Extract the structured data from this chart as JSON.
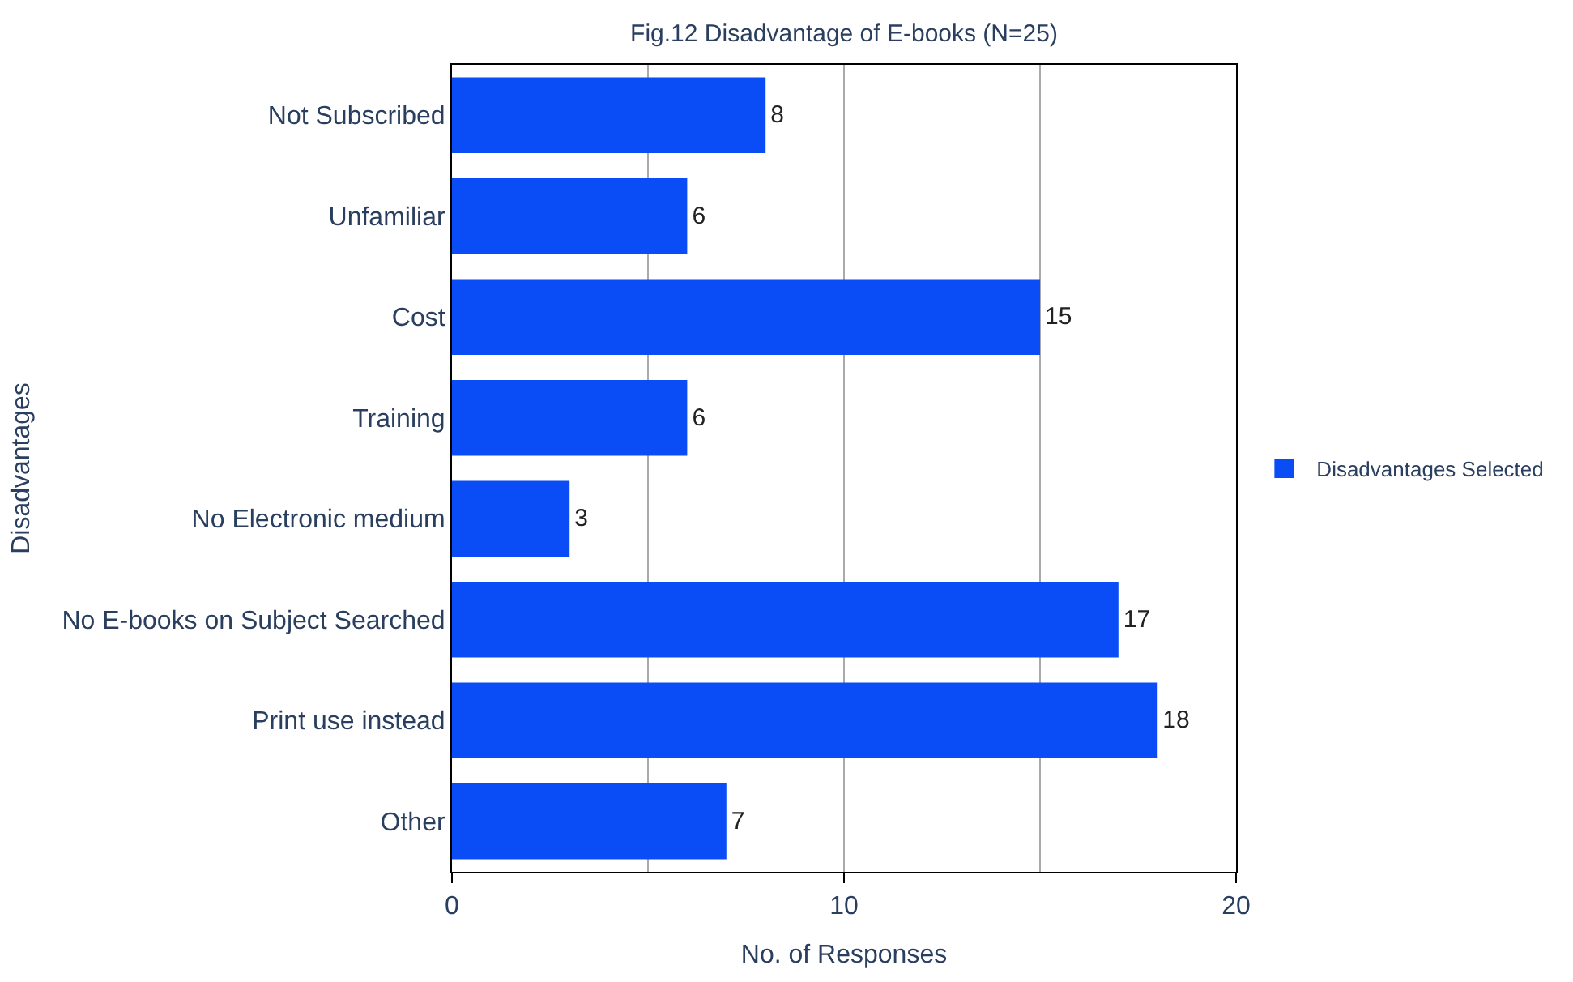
{
  "chart_data": {
    "type": "bar",
    "orientation": "horizontal",
    "title": "Fig.12 Disadvantage of E-books (N=25)",
    "xlabel": "No. of Responses",
    "ylabel": "Disadvantages",
    "categories": [
      "Not Subscribed",
      "Unfamiliar",
      "Cost",
      "Training",
      "No Electronic medium",
      "No E-books on Subject Searched",
      "Print use instead",
      "Other"
    ],
    "series": [
      {
        "name": "Disadvantages Selected",
        "color": "#0a4cf5",
        "values": [
          8,
          6,
          15,
          6,
          3,
          17,
          18,
          7
        ]
      }
    ],
    "xlim": [
      0,
      20
    ],
    "xticks": [
      0,
      10,
      20
    ],
    "grid": "x",
    "legend": "right",
    "data_labels": true
  }
}
